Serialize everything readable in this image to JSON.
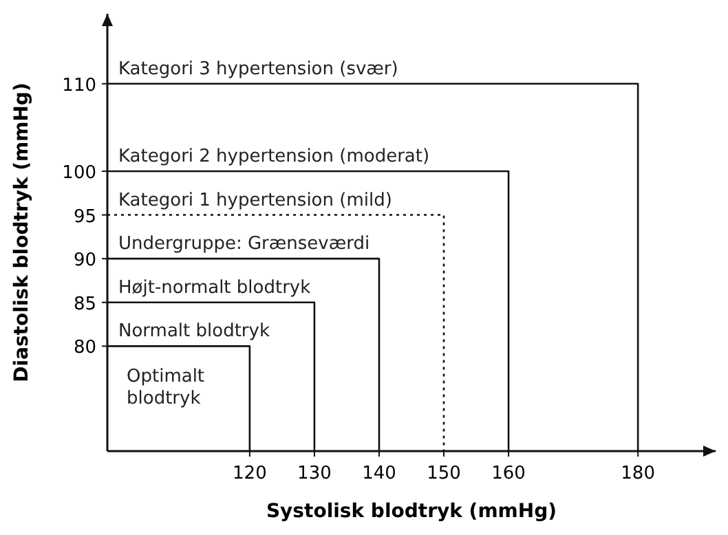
{
  "chart_data": {
    "type": "line",
    "xlabel": "Systolisk blodtryk (mmHg)",
    "ylabel": "Diastolisk blodtryk (mmHg)",
    "xlim": [
      98,
      192
    ],
    "ylim": [
      68,
      118
    ],
    "xticks": [
      120,
      130,
      140,
      150,
      160,
      180
    ],
    "yticks": [
      80,
      85,
      90,
      95,
      100,
      110
    ],
    "series": [
      {
        "name": "Kategori 3 hypertension (svær)",
        "color": "#111111",
        "x": [
          98,
          180,
          180
        ],
        "values": [
          110,
          110,
          68
        ],
        "line_style": "solid"
      },
      {
        "name": "Kategori 2 hypertension (moderat)",
        "color": "#111111",
        "x": [
          98,
          160,
          160
        ],
        "values": [
          100,
          100,
          68
        ],
        "line_style": "solid"
      },
      {
        "name": "Kategori 1 hypertension (mild)",
        "color": "#111111",
        "x": [
          98,
          150,
          150
        ],
        "values": [
          95,
          95,
          68
        ],
        "line_style": "dotted"
      },
      {
        "name": "Undergruppe: Grænseværdi",
        "color": "#111111",
        "x": [
          98,
          140,
          140
        ],
        "values": [
          90,
          90,
          68
        ],
        "line_style": "solid"
      },
      {
        "name": "Højt-normalt blodtryk",
        "color": "#111111",
        "x": [
          98,
          130,
          130
        ],
        "values": [
          85,
          85,
          68
        ],
        "line_style": "solid"
      },
      {
        "name": "Normalt blodtryk",
        "color": "#111111",
        "x": [
          98,
          120,
          120
        ],
        "values": [
          80,
          80,
          68
        ],
        "line_style": "solid"
      }
    ],
    "annotations": [
      "Optimalt blodtryk"
    ]
  }
}
